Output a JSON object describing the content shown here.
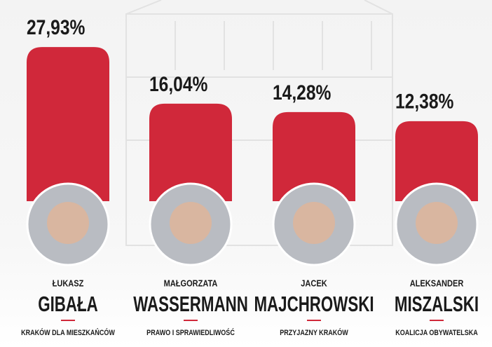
{
  "chart_data": {
    "type": "bar",
    "categories": [
      "GIBAŁA",
      "WASSERMANN",
      "MAJCHROWSKI",
      "MISZALSKI"
    ],
    "first_names": [
      "ŁUKASZ",
      "MAŁGORZATA",
      "JACEK",
      "ALEKSANDER"
    ],
    "parties": [
      "KRAKÓW DLA MIESZKAŃCÓW",
      "PRAWO I SPRAWIEDLIWOŚĆ",
      "PRZYJAZNY KRAKÓW",
      "KOALICJA OBYWATELSKA"
    ],
    "values": [
      27.93,
      16.04,
      14.28,
      12.38
    ],
    "value_labels": [
      "27,93%",
      "16,04%",
      "14,28%",
      "12,38%"
    ],
    "color": "#d0283a"
  }
}
